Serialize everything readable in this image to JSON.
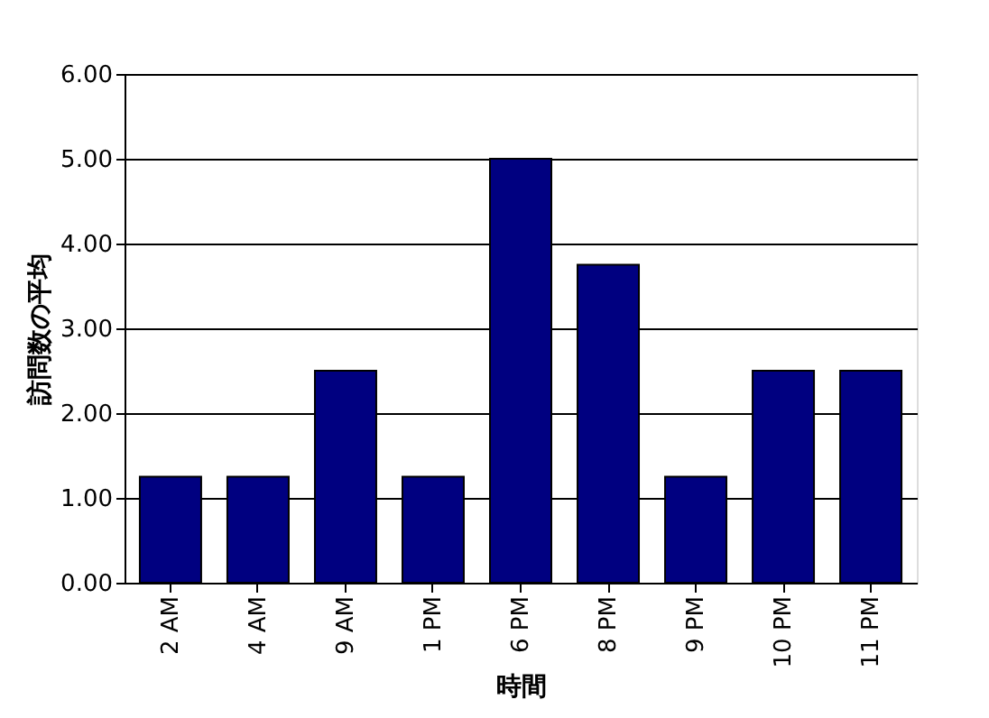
{
  "chart_data": {
    "type": "bar",
    "xlabel": "時間",
    "ylabel": "訪問数の平均",
    "categories": [
      "2 AM",
      "4 AM",
      "9 AM",
      "1 PM",
      "6 PM",
      "8 PM",
      "9 PM",
      "10 PM",
      "11 PM"
    ],
    "values": [
      1.25,
      1.25,
      2.5,
      1.25,
      5.0,
      3.75,
      1.25,
      2.5,
      2.5
    ],
    "color": "#000080",
    "ylim": [
      0,
      6
    ],
    "yticks": [
      {
        "value": 0,
        "label": "0.00"
      },
      {
        "value": 1,
        "label": "1.00"
      },
      {
        "value": 2,
        "label": "2.00"
      },
      {
        "value": 3,
        "label": "3.00"
      },
      {
        "value": 4,
        "label": "4.00"
      },
      {
        "value": 5,
        "label": "5.00"
      },
      {
        "value": 6,
        "label": "6.00"
      }
    ],
    "grid": "y"
  }
}
